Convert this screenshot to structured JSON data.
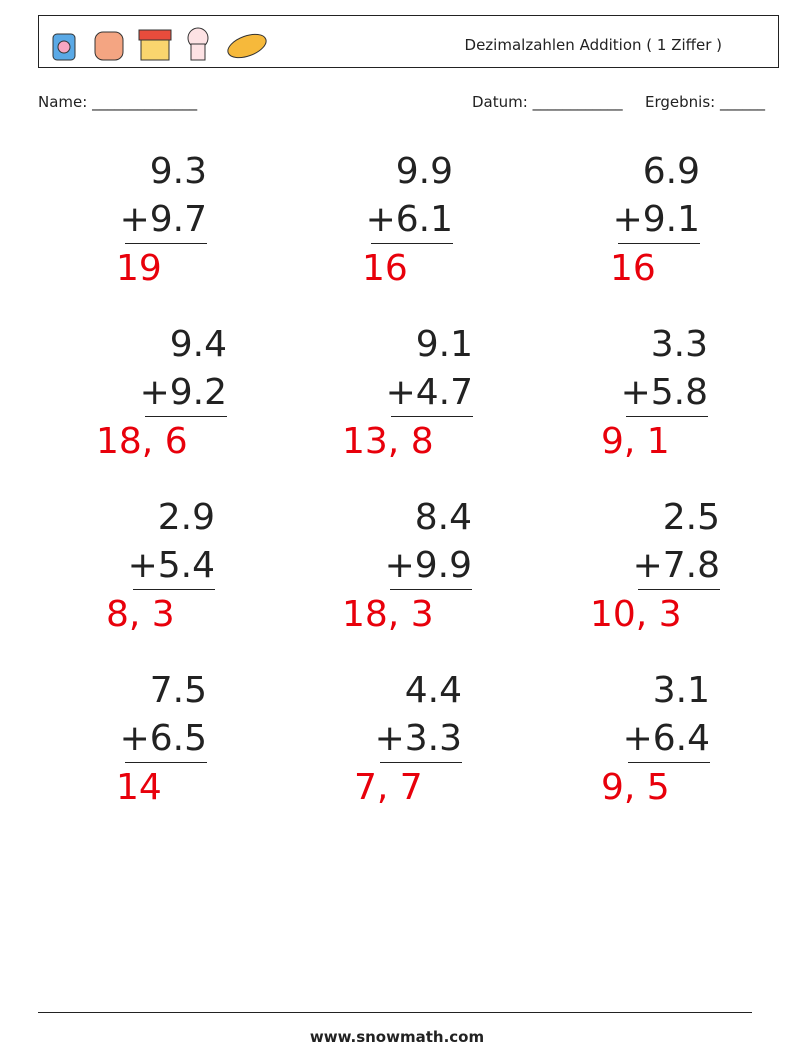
{
  "header": {
    "title": "Dezimalzahlen Addition ( 1 Ziffer )"
  },
  "fields": {
    "name": "Name: ______________",
    "date": "Datum: ____________",
    "result": "Ergebnis: ______"
  },
  "problems": [
    {
      "a": "9.3",
      "b": "+9.7",
      "answer": "19"
    },
    {
      "a": "9.9",
      "b": "+6.1",
      "answer": "16"
    },
    {
      "a": "6.9",
      "b": "+9.1",
      "answer": "16"
    },
    {
      "a": "9.4",
      "b": "+9.2",
      "answer": "18, 6"
    },
    {
      "a": "9.1",
      "b": "+4.7",
      "answer": "13, 8"
    },
    {
      "a": "3.3",
      "b": "+5.8",
      "answer": "9, 1"
    },
    {
      "a": "2.9",
      "b": "+5.4",
      "answer": "8, 3"
    },
    {
      "a": "8.4",
      "b": "+9.9",
      "answer": "18, 3"
    },
    {
      "a": "2.5",
      "b": "+7.8",
      "answer": "10, 3"
    },
    {
      "a": "7.5",
      "b": "+6.5",
      "answer": "14"
    },
    {
      "a": "4.4",
      "b": "+3.3",
      "answer": "7, 7"
    },
    {
      "a": "3.1",
      "b": "+6.4",
      "answer": "9, 5"
    }
  ],
  "footer": {
    "site": "www.snowmath.com"
  }
}
